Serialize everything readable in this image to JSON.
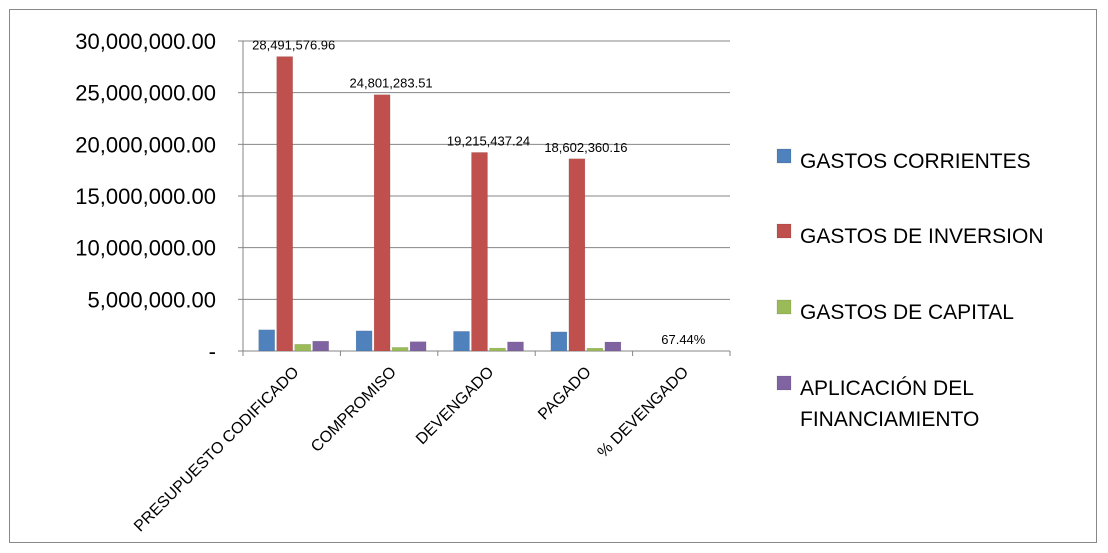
{
  "chart_data": {
    "type": "bar",
    "categories": [
      "PRESUPUESTO CODIFICADO",
      "COMPROMISO",
      "DEVENGADO",
      "PAGADO",
      "% DEVENGADO"
    ],
    "series": [
      {
        "name": "GASTOS CORRIENTES",
        "color": "#4F81BD",
        "values": [
          2050000,
          1950000,
          1900000,
          1850000,
          0
        ]
      },
      {
        "name": "GASTOS DE INVERSION",
        "color": "#C0504D",
        "values": [
          28491576.96,
          24801283.51,
          19215437.24,
          18602360.16,
          0.6744
        ]
      },
      {
        "name": "GASTOS DE CAPITAL",
        "color": "#9BBB59",
        "values": [
          650000,
          350000,
          280000,
          270000,
          0
        ]
      },
      {
        "name": "APLICACIÓN DEL FINANCIAMIENTO",
        "name_lines": [
          "APLICACIÓN DEL",
          "FINANCIAMIENTO"
        ],
        "color": "#8064A2",
        "values": [
          950000,
          900000,
          880000,
          870000,
          0
        ]
      }
    ],
    "data_labels": [
      "28,491,576.96",
      "24,801,283.51",
      "19,215,437.24",
      "18,602,360.16",
      "67.44%"
    ],
    "ytick_labels": [
      "-",
      "5,000,000.00",
      "10,000,000.00",
      "15,000,000.00",
      "20,000,000.00",
      "25,000,000.00",
      "30,000,000.00"
    ],
    "ytick_values": [
      0,
      5000000,
      10000000,
      15000000,
      20000000,
      25000000,
      30000000
    ],
    "ylim": [
      0,
      30000000
    ],
    "grid": true,
    "legend_position": "right",
    "title": "",
    "xlabel": "",
    "ylabel": ""
  }
}
